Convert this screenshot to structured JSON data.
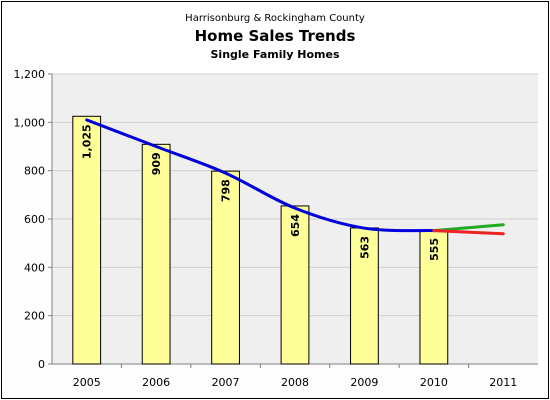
{
  "chart_data": {
    "type": "bar",
    "supertitle": "Harrisonburg & Rockingham County",
    "title": "Home Sales Trends",
    "subtitle": "Single Family Homes",
    "xlabel": "",
    "ylabel": "",
    "categories": [
      "2005",
      "2006",
      "2007",
      "2008",
      "2009",
      "2010",
      "2011"
    ],
    "ylim": [
      0,
      1200
    ],
    "yticks": [
      0,
      200,
      400,
      600,
      800,
      1000,
      1200
    ],
    "ytick_labels": [
      "0",
      "200",
      "400",
      "600",
      "800",
      "1,000",
      "1,200"
    ],
    "grid": true,
    "legend": "none",
    "series": [
      {
        "type": "bar",
        "values": [
          1025,
          909,
          798,
          654,
          563,
          555,
          null
        ],
        "labels": [
          "1,025",
          "909",
          "798",
          "654",
          "563",
          "555",
          ""
        ],
        "color": "#ffff99",
        "border_color": "#000000"
      },
      {
        "type": "line",
        "x": [
          "2005",
          "2006",
          "2007",
          "2008",
          "2009",
          "2010"
        ],
        "values": [
          1010,
          900,
          790,
          645,
          562,
          552
        ],
        "color": "#0000dd",
        "smooth": true
      },
      {
        "type": "line",
        "x": [
          "2010",
          "2011"
        ],
        "values": [
          552,
          576
        ],
        "color": "#22aa22"
      },
      {
        "type": "line",
        "x": [
          "2010",
          "2011"
        ],
        "values": [
          552,
          539
        ],
        "color": "#ee2222"
      }
    ],
    "colors": {
      "plot_bg": "#efefef",
      "grid": "#cfcfcf",
      "axis": "#808080"
    }
  }
}
